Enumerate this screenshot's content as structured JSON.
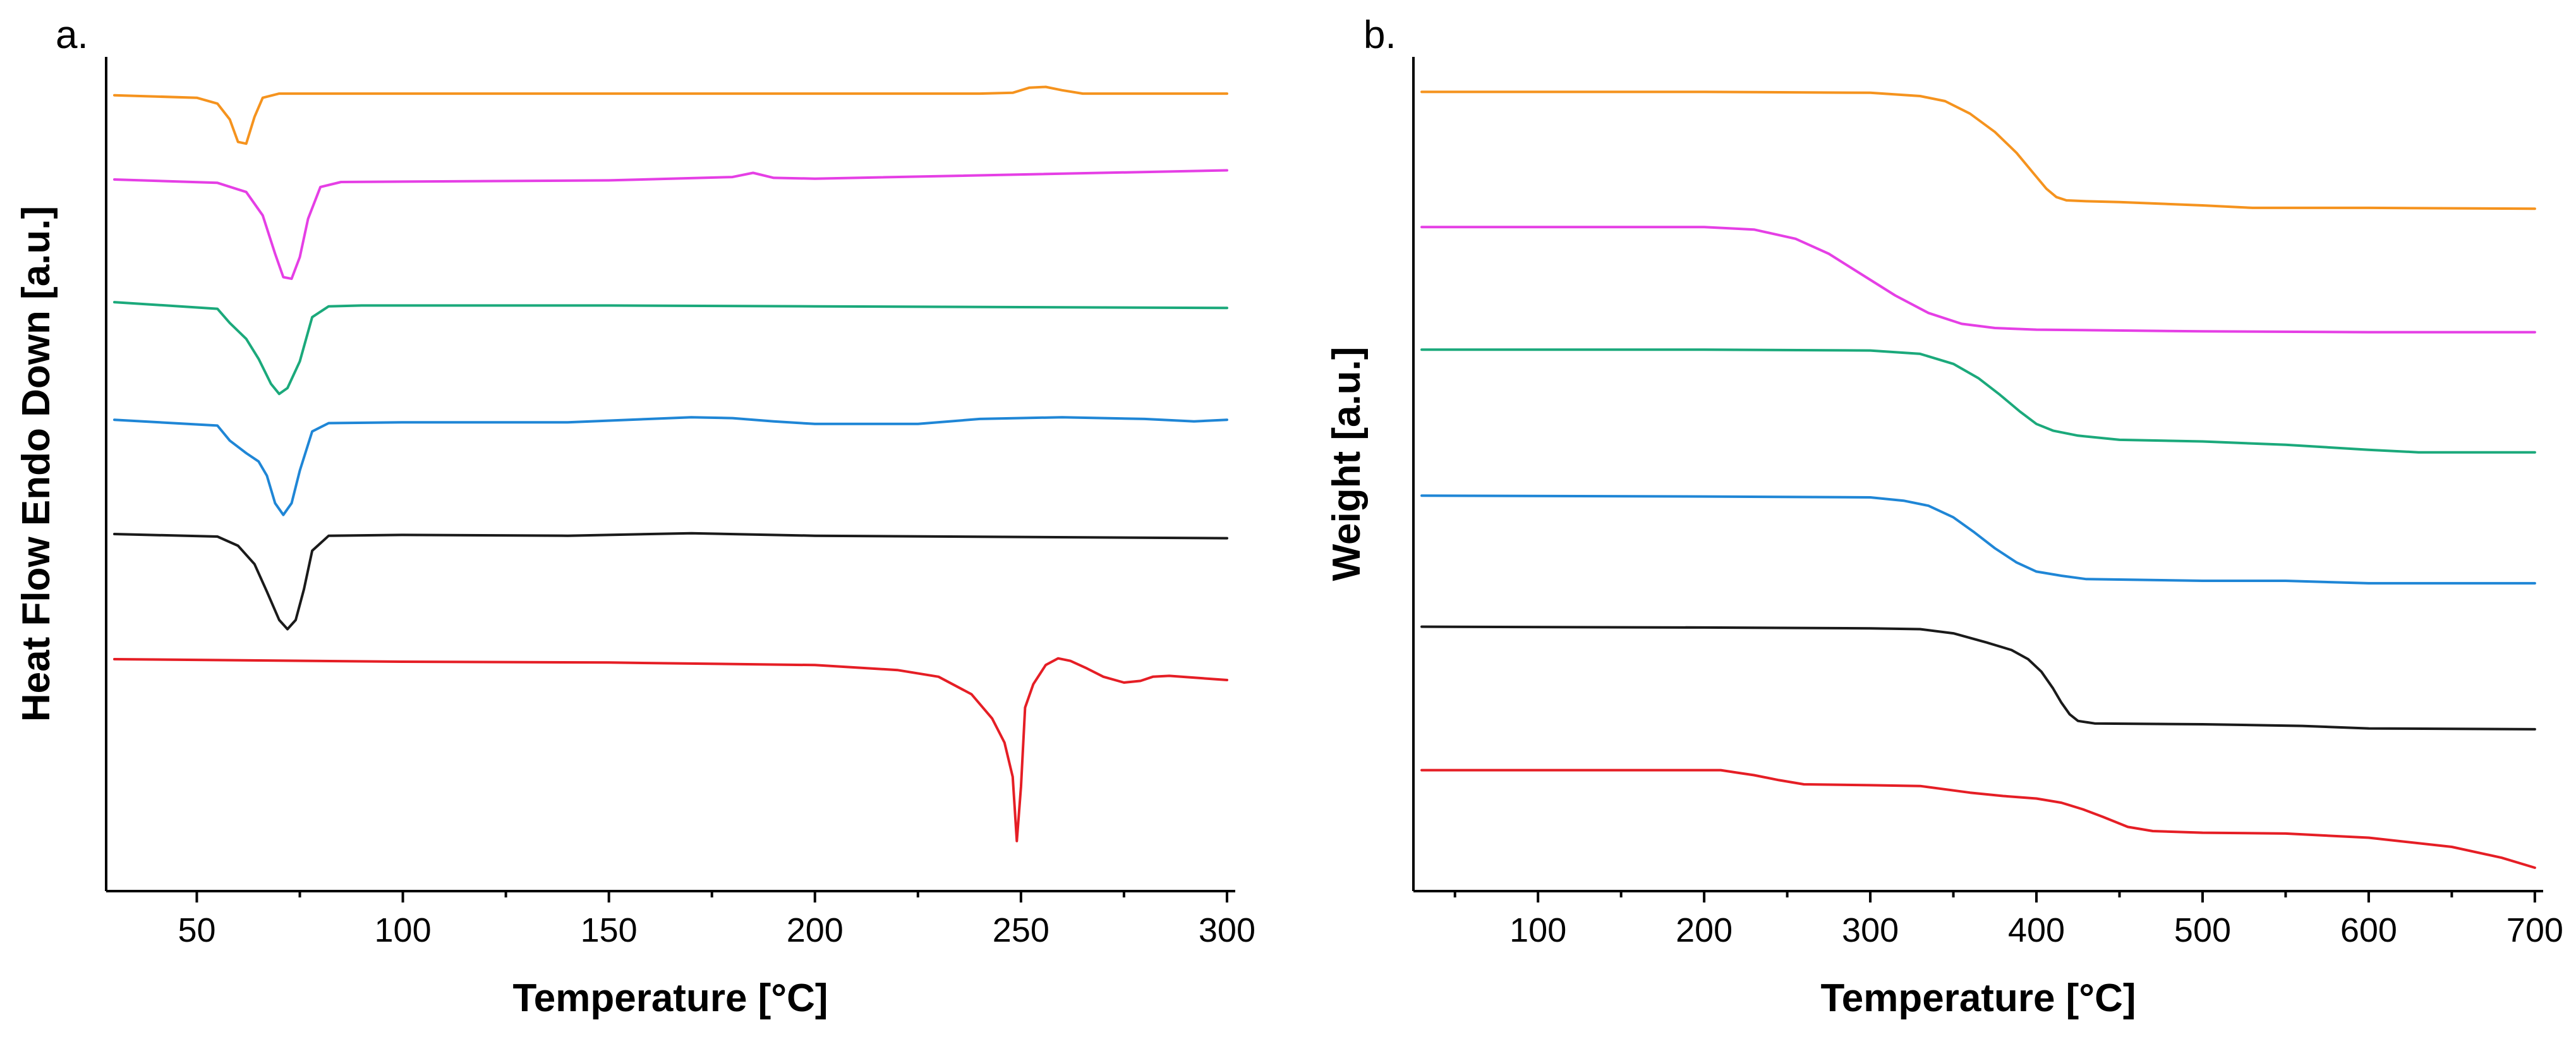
{
  "chart_data": [
    {
      "type": "line",
      "panel_label": "a.",
      "title": "",
      "xlabel": "Temperature [°C]",
      "ylabel": "Heat Flow Endo Down [a.u.]",
      "xlim": [
        28,
        302
      ],
      "ylim": [
        0,
        100
      ],
      "x_ticks": [
        50,
        100,
        150,
        200,
        250,
        300
      ],
      "x_tick_labels": [
        "50",
        "100",
        "150",
        "200",
        "250",
        "300"
      ],
      "y_ticks_shown": false,
      "grid": false,
      "legend": "none",
      "series": [
        {
          "name": "orange",
          "color": "#F5931E",
          "points": [
            [
              30,
              95.4
            ],
            [
              50,
              95.1
            ],
            [
              55,
              94.4
            ],
            [
              58,
              92.5
            ],
            [
              60,
              89.8
            ],
            [
              62,
              89.6
            ],
            [
              64,
              92.8
            ],
            [
              66,
              95.1
            ],
            [
              70,
              95.6
            ],
            [
              100,
              95.6
            ],
            [
              200,
              95.6
            ],
            [
              240,
              95.6
            ],
            [
              248,
              95.7
            ],
            [
              252,
              96.3
            ],
            [
              256,
              96.4
            ],
            [
              260,
              96.0
            ],
            [
              265,
              95.6
            ],
            [
              300,
              95.6
            ]
          ]
        },
        {
          "name": "magenta",
          "color": "#E53FE5",
          "points": [
            [
              30,
              85.3
            ],
            [
              55,
              84.9
            ],
            [
              62,
              83.8
            ],
            [
              66,
              81.0
            ],
            [
              69,
              76.4
            ],
            [
              71,
              73.6
            ],
            [
              73,
              73.4
            ],
            [
              75,
              76.0
            ],
            [
              77,
              80.6
            ],
            [
              80,
              84.4
            ],
            [
              85,
              85.0
            ],
            [
              150,
              85.2
            ],
            [
              180,
              85.6
            ],
            [
              185,
              86.1
            ],
            [
              190,
              85.5
            ],
            [
              200,
              85.4
            ],
            [
              300,
              86.4
            ]
          ]
        },
        {
          "name": "green",
          "color": "#1BA97B",
          "points": [
            [
              30,
              70.6
            ],
            [
              55,
              69.8
            ],
            [
              58,
              68.1
            ],
            [
              62,
              66.2
            ],
            [
              65,
              63.8
            ],
            [
              68,
              60.8
            ],
            [
              70,
              59.6
            ],
            [
              72,
              60.3
            ],
            [
              75,
              63.5
            ],
            [
              78,
              68.8
            ],
            [
              82,
              70.1
            ],
            [
              90,
              70.2
            ],
            [
              150,
              70.2
            ],
            [
              200,
              70.1
            ],
            [
              250,
              70.0
            ],
            [
              300,
              69.9
            ]
          ]
        },
        {
          "name": "blue",
          "color": "#1F86D6",
          "points": [
            [
              30,
              56.5
            ],
            [
              55,
              55.8
            ],
            [
              58,
              54.0
            ],
            [
              62,
              52.5
            ],
            [
              65,
              51.5
            ],
            [
              67,
              49.8
            ],
            [
              69,
              46.5
            ],
            [
              71,
              45.1
            ],
            [
              73,
              46.5
            ],
            [
              75,
              50.4
            ],
            [
              78,
              55.1
            ],
            [
              82,
              56.1
            ],
            [
              100,
              56.2
            ],
            [
              140,
              56.2
            ],
            [
              160,
              56.6
            ],
            [
              170,
              56.8
            ],
            [
              180,
              56.7
            ],
            [
              190,
              56.3
            ],
            [
              200,
              56.0
            ],
            [
              225,
              56.0
            ],
            [
              240,
              56.6
            ],
            [
              260,
              56.8
            ],
            [
              280,
              56.6
            ],
            [
              292,
              56.3
            ],
            [
              300,
              56.5
            ]
          ]
        },
        {
          "name": "black",
          "color": "#1A1A1A",
          "points": [
            [
              30,
              42.8
            ],
            [
              55,
              42.5
            ],
            [
              60,
              41.4
            ],
            [
              64,
              39.2
            ],
            [
              67,
              35.9
            ],
            [
              70,
              32.5
            ],
            [
              72,
              31.4
            ],
            [
              74,
              32.5
            ],
            [
              76,
              36.2
            ],
            [
              78,
              40.8
            ],
            [
              82,
              42.6
            ],
            [
              100,
              42.7
            ],
            [
              140,
              42.6
            ],
            [
              170,
              42.9
            ],
            [
              200,
              42.6
            ],
            [
              300,
              42.3
            ]
          ]
        },
        {
          "name": "red",
          "color": "#E51E25",
          "points": [
            [
              30,
              27.8
            ],
            [
              100,
              27.5
            ],
            [
              150,
              27.4
            ],
            [
              200,
              27.1
            ],
            [
              220,
              26.5
            ],
            [
              230,
              25.7
            ],
            [
              238,
              23.6
            ],
            [
              243,
              20.7
            ],
            [
              246,
              17.8
            ],
            [
              248,
              13.7
            ],
            [
              249,
              6.0
            ],
            [
              250,
              12.5
            ],
            [
              251,
              22.0
            ],
            [
              253,
              24.8
            ],
            [
              256,
              27.1
            ],
            [
              259,
              27.9
            ],
            [
              262,
              27.6
            ],
            [
              266,
              26.7
            ],
            [
              270,
              25.7
            ],
            [
              275,
              25.0
            ],
            [
              279,
              25.2
            ],
            [
              282,
              25.7
            ],
            [
              286,
              25.8
            ],
            [
              300,
              25.3
            ]
          ]
        }
      ]
    },
    {
      "type": "line",
      "panel_label": "b.",
      "title": "",
      "xlabel": "Temperature [°C]",
      "ylabel": "Weight [a.u.]",
      "xlim": [
        25,
        705
      ],
      "ylim": [
        0,
        100
      ],
      "x_ticks": [
        100,
        200,
        300,
        400,
        500,
        600,
        700
      ],
      "x_tick_labels": [
        "100",
        "200",
        "300",
        "400",
        "500",
        "600",
        "700"
      ],
      "y_ticks_shown": false,
      "grid": false,
      "legend": "none",
      "series": [
        {
          "name": "orange",
          "color": "#F5931E",
          "points": [
            [
              30,
              95.8
            ],
            [
              200,
              95.8
            ],
            [
              300,
              95.7
            ],
            [
              330,
              95.3
            ],
            [
              345,
              94.7
            ],
            [
              360,
              93.2
            ],
            [
              375,
              91.0
            ],
            [
              388,
              88.5
            ],
            [
              398,
              86.1
            ],
            [
              406,
              84.2
            ],
            [
              412,
              83.2
            ],
            [
              418,
              82.8
            ],
            [
              430,
              82.7
            ],
            [
              450,
              82.6
            ],
            [
              500,
              82.2
            ],
            [
              530,
              81.9
            ],
            [
              600,
              81.9
            ],
            [
              700,
              81.8
            ]
          ]
        },
        {
          "name": "magenta",
          "color": "#E53FE5",
          "points": [
            [
              30,
              79.6
            ],
            [
              200,
              79.6
            ],
            [
              230,
              79.3
            ],
            [
              255,
              78.2
            ],
            [
              275,
              76.4
            ],
            [
              295,
              73.9
            ],
            [
              315,
              71.4
            ],
            [
              335,
              69.3
            ],
            [
              355,
              68.0
            ],
            [
              375,
              67.5
            ],
            [
              400,
              67.3
            ],
            [
              500,
              67.1
            ],
            [
              600,
              67.0
            ],
            [
              700,
              67.0
            ]
          ]
        },
        {
          "name": "green",
          "color": "#1BA97B",
          "points": [
            [
              30,
              64.9
            ],
            [
              200,
              64.9
            ],
            [
              300,
              64.8
            ],
            [
              330,
              64.4
            ],
            [
              350,
              63.2
            ],
            [
              365,
              61.5
            ],
            [
              378,
              59.5
            ],
            [
              390,
              57.5
            ],
            [
              400,
              56.0
            ],
            [
              410,
              55.2
            ],
            [
              425,
              54.6
            ],
            [
              450,
              54.1
            ],
            [
              500,
              53.9
            ],
            [
              550,
              53.5
            ],
            [
              600,
              52.9
            ],
            [
              630,
              52.6
            ],
            [
              700,
              52.6
            ]
          ]
        },
        {
          "name": "blue",
          "color": "#1F86D6",
          "points": [
            [
              30,
              47.4
            ],
            [
              200,
              47.3
            ],
            [
              300,
              47.2
            ],
            [
              320,
              46.8
            ],
            [
              335,
              46.2
            ],
            [
              350,
              44.8
            ],
            [
              362,
              43.1
            ],
            [
              375,
              41.1
            ],
            [
              388,
              39.4
            ],
            [
              400,
              38.3
            ],
            [
              415,
              37.8
            ],
            [
              430,
              37.4
            ],
            [
              500,
              37.2
            ],
            [
              550,
              37.2
            ],
            [
              600,
              36.9
            ],
            [
              700,
              36.9
            ]
          ]
        },
        {
          "name": "black",
          "color": "#1A1A1A",
          "points": [
            [
              30,
              31.7
            ],
            [
              200,
              31.6
            ],
            [
              300,
              31.5
            ],
            [
              330,
              31.4
            ],
            [
              350,
              30.9
            ],
            [
              370,
              29.8
            ],
            [
              385,
              28.9
            ],
            [
              395,
              27.8
            ],
            [
              403,
              26.3
            ],
            [
              410,
              24.3
            ],
            [
              415,
              22.6
            ],
            [
              420,
              21.2
            ],
            [
              425,
              20.4
            ],
            [
              435,
              20.1
            ],
            [
              500,
              20.0
            ],
            [
              560,
              19.8
            ],
            [
              600,
              19.5
            ],
            [
              700,
              19.4
            ]
          ]
        },
        {
          "name": "red",
          "color": "#E51E25",
          "points": [
            [
              30,
              14.5
            ],
            [
              150,
              14.5
            ],
            [
              210,
              14.5
            ],
            [
              220,
              14.2
            ],
            [
              230,
              13.9
            ],
            [
              245,
              13.3
            ],
            [
              260,
              12.8
            ],
            [
              300,
              12.7
            ],
            [
              330,
              12.6
            ],
            [
              360,
              11.8
            ],
            [
              380,
              11.4
            ],
            [
              400,
              11.1
            ],
            [
              415,
              10.6
            ],
            [
              428,
              9.8
            ],
            [
              440,
              8.9
            ],
            [
              455,
              7.7
            ],
            [
              470,
              7.2
            ],
            [
              500,
              7.0
            ],
            [
              550,
              6.9
            ],
            [
              600,
              6.4
            ],
            [
              650,
              5.3
            ],
            [
              680,
              4.0
            ],
            [
              700,
              2.8
            ]
          ]
        }
      ]
    }
  ]
}
